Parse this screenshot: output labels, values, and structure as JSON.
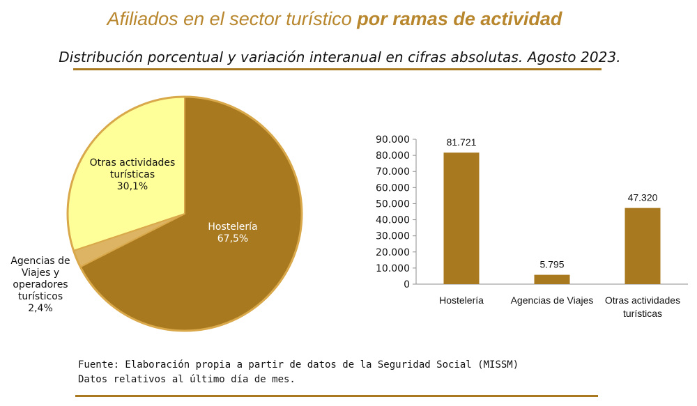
{
  "header": {
    "title_plain": "Afiliados en el sector turístico",
    "title_bold": "por ramas de actividad",
    "subtitle": "Distribución porcentual y variación interanual en cifras absolutas. Agosto 2023."
  },
  "footer": {
    "source": "Fuente: Elaboración propia a partir de datos de la Seguridad Social (MISSM)",
    "note": "Datos relativos al último día de mes."
  },
  "colors": {
    "brand": "#a8791f",
    "hosteleria": "#a8791f",
    "agencias": "#dcb463",
    "otras": "#ffff99",
    "pie_outline": "#d9a84a",
    "bar": "#a8791f"
  },
  "chart_data": [
    {
      "type": "pie",
      "slices": [
        {
          "name_lines": [
            "Hostelería"
          ],
          "percent_label": "67,5%",
          "value": 67.5
        },
        {
          "name_lines": [
            "Agencias de",
            "Viajes y",
            "operadores",
            "turísticos"
          ],
          "percent_label": "2,4%",
          "value": 2.4
        },
        {
          "name_lines": [
            "Otras actividades",
            "turísticas"
          ],
          "percent_label": "30,1%",
          "value": 30.1
        }
      ]
    },
    {
      "type": "bar",
      "categories": [
        [
          "Hostelería"
        ],
        [
          "Agencias de Viajes"
        ],
        [
          "Otras actividades",
          "turísticas"
        ]
      ],
      "values": [
        81721,
        5795,
        47320
      ],
      "value_labels": [
        "81.721",
        "5.795",
        "47.320"
      ],
      "ylim": [
        0,
        90000
      ],
      "yticks": [
        {
          "value": 0,
          "label": "0"
        },
        {
          "value": 10000,
          "label": "10.000"
        },
        {
          "value": 20000,
          "label": "20.000"
        },
        {
          "value": 30000,
          "label": "30.000"
        },
        {
          "value": 40000,
          "label": "40.000"
        },
        {
          "value": 50000,
          "label": "50.000"
        },
        {
          "value": 60000,
          "label": "60.000"
        },
        {
          "value": 70000,
          "label": "70.000"
        },
        {
          "value": 80000,
          "label": "80.000"
        },
        {
          "value": 90000,
          "label": "90.000"
        }
      ],
      "grid": false
    }
  ]
}
